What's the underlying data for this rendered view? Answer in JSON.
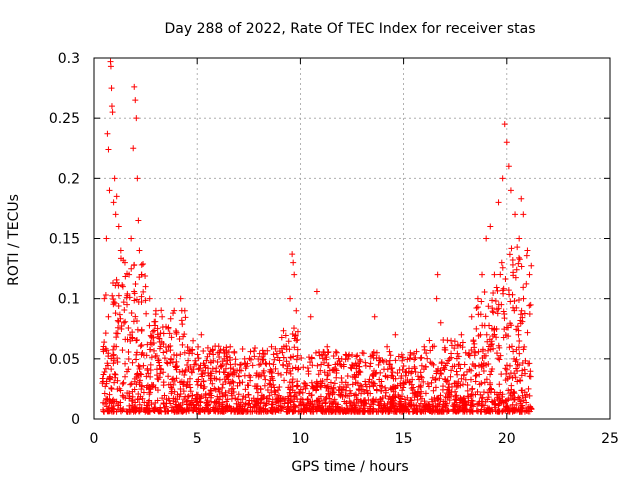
{
  "chart_data": {
    "type": "scatter",
    "title": "Day 288 of 2022, Rate Of TEC Index for receiver stas",
    "xlabel": "GPS time / hours",
    "ylabel": "ROTI / TECUs",
    "xlim": [
      0,
      25
    ],
    "ylim": [
      0,
      0.3
    ],
    "xticks": [
      0,
      5,
      10,
      15,
      20,
      25
    ],
    "yticks": [
      0,
      0.05,
      0.1,
      0.15,
      0.2,
      0.25,
      0.3
    ],
    "xtick_labels": [
      "0",
      "5",
      "10",
      "15",
      "20",
      "25"
    ],
    "ytick_labels": [
      "0",
      "0.05",
      "0.1",
      "0.15",
      "0.2",
      "0.25",
      "0.3"
    ],
    "grid": true,
    "marker": "plus",
    "color": "#ff0000",
    "data_range_x": [
      0.4,
      21.2
    ],
    "series": [
      {
        "points": [
          [
            0.5,
            0.1
          ],
          [
            0.6,
            0.15
          ],
          [
            0.65,
            0.237
          ],
          [
            0.7,
            0.224
          ],
          [
            0.75,
            0.19
          ],
          [
            0.8,
            0.297
          ],
          [
            0.82,
            0.293
          ],
          [
            0.85,
            0.275
          ],
          [
            0.87,
            0.26
          ],
          [
            0.9,
            0.255
          ],
          [
            0.95,
            0.18
          ],
          [
            1.0,
            0.2
          ],
          [
            1.05,
            0.17
          ],
          [
            1.1,
            0.185
          ],
          [
            1.2,
            0.16
          ],
          [
            1.3,
            0.14
          ],
          [
            1.4,
            0.11
          ],
          [
            1.5,
            0.13
          ],
          [
            1.6,
            0.095
          ],
          [
            1.7,
            0.12
          ],
          [
            1.8,
            0.15
          ],
          [
            1.9,
            0.225
          ],
          [
            1.95,
            0.276
          ],
          [
            2.0,
            0.265
          ],
          [
            2.05,
            0.25
          ],
          [
            2.1,
            0.2
          ],
          [
            2.15,
            0.165
          ],
          [
            2.2,
            0.14
          ],
          [
            2.3,
            0.12
          ],
          [
            2.5,
            0.11
          ],
          [
            2.7,
            0.1
          ],
          [
            3.0,
            0.09
          ],
          [
            3.3,
            0.085
          ],
          [
            3.6,
            0.075
          ],
          [
            4.0,
            0.072
          ],
          [
            4.2,
            0.1
          ],
          [
            4.4,
            0.09
          ],
          [
            4.8,
            0.065
          ],
          [
            5.2,
            0.07
          ],
          [
            6.0,
            0.055
          ],
          [
            6.6,
            0.06
          ],
          [
            7.3,
            0.05
          ],
          [
            8.0,
            0.045
          ],
          [
            8.6,
            0.06
          ],
          [
            9.2,
            0.06
          ],
          [
            9.5,
            0.1
          ],
          [
            9.6,
            0.137
          ],
          [
            9.65,
            0.13
          ],
          [
            9.7,
            0.12
          ],
          [
            9.8,
            0.09
          ],
          [
            10.5,
            0.085
          ],
          [
            10.8,
            0.106
          ],
          [
            11.3,
            0.06
          ],
          [
            12.0,
            0.05
          ],
          [
            12.5,
            0.045
          ],
          [
            13.0,
            0.055
          ],
          [
            13.6,
            0.085
          ],
          [
            14.2,
            0.06
          ],
          [
            14.6,
            0.07
          ],
          [
            15.3,
            0.05
          ],
          [
            16.0,
            0.06
          ],
          [
            16.4,
            0.06
          ],
          [
            16.6,
            0.1
          ],
          [
            16.65,
            0.12
          ],
          [
            16.8,
            0.08
          ],
          [
            17.3,
            0.065
          ],
          [
            17.8,
            0.07
          ],
          [
            18.3,
            0.085
          ],
          [
            18.6,
            0.1
          ],
          [
            18.8,
            0.12
          ],
          [
            19.0,
            0.15
          ],
          [
            19.2,
            0.16
          ],
          [
            19.4,
            0.12
          ],
          [
            19.6,
            0.18
          ],
          [
            19.8,
            0.2
          ],
          [
            19.9,
            0.245
          ],
          [
            20.0,
            0.23
          ],
          [
            20.1,
            0.21
          ],
          [
            20.2,
            0.19
          ],
          [
            20.4,
            0.17
          ],
          [
            20.6,
            0.15
          ],
          [
            20.7,
            0.183
          ],
          [
            20.8,
            0.17
          ],
          [
            21.0,
            0.14
          ],
          [
            21.1,
            0.12
          ]
        ]
      }
    ]
  }
}
